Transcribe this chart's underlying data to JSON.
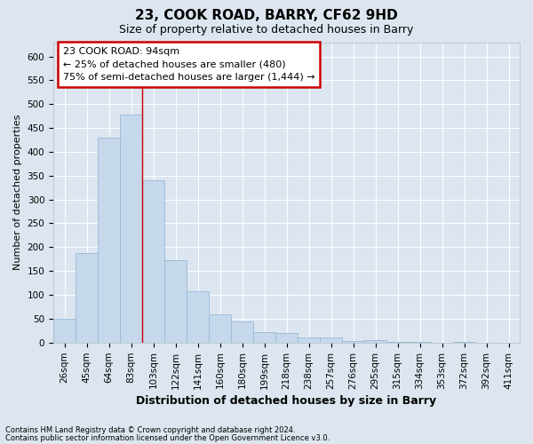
{
  "title": "23, COOK ROAD, BARRY, CF62 9HD",
  "subtitle": "Size of property relative to detached houses in Barry",
  "xlabel": "Distribution of detached houses by size in Barry",
  "ylabel": "Number of detached properties",
  "footnote1": "Contains HM Land Registry data © Crown copyright and database right 2024.",
  "footnote2": "Contains public sector information licensed under the Open Government Licence v3.0.",
  "annotation_title": "23 COOK ROAD: 94sqm",
  "annotation_line1": "← 25% of detached houses are smaller (480)",
  "annotation_line2": "75% of semi-detached houses are larger (1,444) →",
  "bar_color": "#c5d8ec",
  "bar_edge_color": "#9ab8d8",
  "vline_color": "#cc0000",
  "vline_x_idx": 4,
  "categories": [
    "26sqm",
    "45sqm",
    "64sqm",
    "83sqm",
    "103sqm",
    "122sqm",
    "141sqm",
    "160sqm",
    "180sqm",
    "199sqm",
    "218sqm",
    "238sqm",
    "257sqm",
    "276sqm",
    "295sqm",
    "315sqm",
    "334sqm",
    "353sqm",
    "372sqm",
    "392sqm",
    "411sqm"
  ],
  "values": [
    50,
    188,
    430,
    478,
    340,
    173,
    108,
    59,
    44,
    22,
    20,
    10,
    11,
    4,
    5,
    1,
    1,
    0,
    1,
    0,
    0
  ],
  "ylim": [
    0,
    630
  ],
  "yticks": [
    0,
    50,
    100,
    150,
    200,
    250,
    300,
    350,
    400,
    450,
    500,
    550,
    600
  ],
  "background_color": "#dde6f0",
  "plot_bg_color": "#dde6f0",
  "grid_color": "#ffffff",
  "title_fontsize": 11,
  "subtitle_fontsize": 9,
  "xlabel_fontsize": 9,
  "ylabel_fontsize": 8,
  "tick_fontsize": 7.5,
  "annot_fontsize": 8
}
